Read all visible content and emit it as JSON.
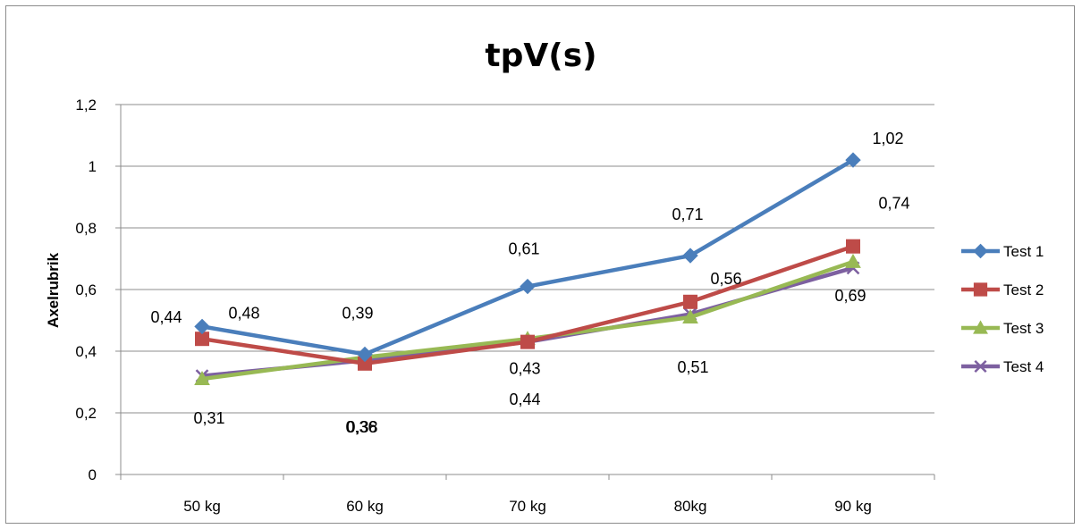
{
  "chart_data": {
    "type": "line",
    "title": "tpV(s)",
    "xlabel": "",
    "ylabel": "Axelrubrik",
    "categories": [
      "50 kg",
      "60 kg",
      "70 kg",
      "80kg",
      "90 kg"
    ],
    "ylim": [
      0,
      1.2
    ],
    "yticks": [
      "0",
      "0,2",
      "0,4",
      "0,6",
      "0,8",
      "1",
      "1,2"
    ],
    "grid": true,
    "legend_position": "right",
    "series": [
      {
        "name": "Test 1",
        "color": "#4a7ebb",
        "marker": "diamond",
        "values": [
          0.48,
          0.39,
          0.61,
          0.71,
          1.02
        ],
        "labels": [
          "0,48",
          "0,39",
          "0,61",
          "0,71",
          "1,02"
        ]
      },
      {
        "name": "Test 2",
        "color": "#be4b48",
        "marker": "square",
        "values": [
          0.44,
          0.36,
          0.43,
          0.56,
          0.74
        ],
        "labels": [
          "0,44",
          "0,36",
          "0,43",
          "0,56",
          "0,74"
        ]
      },
      {
        "name": "Test 3",
        "color": "#98b954",
        "marker": "triangle",
        "values": [
          0.31,
          0.38,
          0.44,
          0.51,
          0.69
        ],
        "labels": [
          "0,31",
          "0,38",
          "0,44",
          "0,51",
          "0,69"
        ]
      },
      {
        "name": "Test 4",
        "color": "#7d60a0",
        "marker": "x",
        "values": [
          0.32,
          0.37,
          0.43,
          0.52,
          0.67
        ],
        "labels": []
      }
    ]
  }
}
